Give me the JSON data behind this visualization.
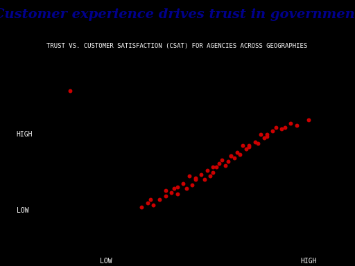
{
  "title": "Customer experience drives trust in government",
  "subtitle": "TRUST VS. CUSTOMER SATISFACTION (CSAT) FOR AGENCIES ACROSS GEOGRAPHIES",
  "background_color": "#000000",
  "title_color": "#00008B",
  "subtitle_color": "#ffffff",
  "dot_color": "#cc0000",
  "xlabel_low": "LOW",
  "xlabel_high": "HIGH",
  "ylabel_low": "LOW",
  "ylabel_high": "HIGH",
  "scatter_x": [
    0.08,
    0.32,
    0.34,
    0.36,
    0.35,
    0.38,
    0.4,
    0.4,
    0.42,
    0.44,
    0.43,
    0.44,
    0.46,
    0.47,
    0.49,
    0.5,
    0.48,
    0.5,
    0.52,
    0.53,
    0.55,
    0.54,
    0.56,
    0.57,
    0.56,
    0.58,
    0.6,
    0.59,
    0.61,
    0.62,
    0.63,
    0.62,
    0.64,
    0.65,
    0.67,
    0.66,
    0.68,
    0.68,
    0.7,
    0.71,
    0.73,
    0.72,
    0.74,
    0.74,
    0.76,
    0.77,
    0.79,
    0.8,
    0.82,
    0.84,
    0.88
  ],
  "scatter_y": [
    0.82,
    0.18,
    0.2,
    0.19,
    0.22,
    0.22,
    0.24,
    0.27,
    0.26,
    0.25,
    0.28,
    0.29,
    0.31,
    0.28,
    0.3,
    0.33,
    0.35,
    0.34,
    0.36,
    0.33,
    0.35,
    0.38,
    0.37,
    0.4,
    0.4,
    0.42,
    0.41,
    0.44,
    0.43,
    0.46,
    0.45,
    0.46,
    0.48,
    0.47,
    0.5,
    0.52,
    0.51,
    0.52,
    0.54,
    0.53,
    0.56,
    0.58,
    0.57,
    0.58,
    0.6,
    0.62,
    0.61,
    0.62,
    0.64,
    0.63,
    0.66
  ],
  "title_fontsize": 14,
  "subtitle_fontsize": 6.5,
  "label_fontsize": 7,
  "dot_size": 18
}
